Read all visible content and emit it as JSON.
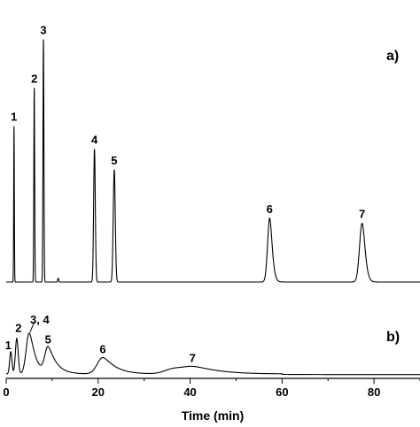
{
  "chart_data": [
    {
      "panel_label": "a)",
      "type": "line",
      "xlabel": "Time (min)",
      "xlim": [
        0,
        90
      ],
      "ylim": [
        0,
        1
      ],
      "peaks": [
        {
          "label": "1",
          "time": 1.7,
          "height": 0.61,
          "width": 0.07,
          "tail": 0.0
        },
        {
          "label": "2",
          "time": 6.1,
          "height": 0.76,
          "width": 0.09,
          "tail": 0.0
        },
        {
          "label": "3",
          "time": 8.1,
          "height": 0.95,
          "width": 0.1,
          "tail": 0.0
        },
        {
          "label": "4",
          "time": 19.2,
          "height": 0.52,
          "width": 0.18,
          "tail": 0.0
        },
        {
          "label": "5",
          "time": 23.5,
          "height": 0.44,
          "width": 0.22,
          "tail": 0.0
        },
        {
          "label": "6",
          "time": 57.3,
          "height": 0.25,
          "width": 0.45,
          "tail": 1.6
        },
        {
          "label": "7",
          "time": 77.4,
          "height": 0.23,
          "width": 0.55,
          "tail": 2.4
        }
      ],
      "minor_peaks": [
        {
          "time": 11.3,
          "height": 0.015,
          "width": 0.1
        }
      ]
    },
    {
      "panel_label": "b)",
      "type": "line",
      "xlabel": "Time (min)",
      "xlim": [
        0,
        90
      ],
      "ylim": [
        0,
        1
      ],
      "peaks": [
        {
          "label": "1",
          "time": 1.0,
          "height": 0.3,
          "width": 0.25,
          "tail": 0.0
        },
        {
          "label": "2",
          "time": 2.3,
          "height": 0.48,
          "width": 0.3,
          "tail": 0.0
        },
        {
          "label": "3, 4",
          "time": 5.0,
          "height": 0.55,
          "width": 0.65,
          "tail": 0.8
        },
        {
          "label": "5",
          "time": 9.1,
          "height": 0.35,
          "width": 0.7,
          "tail": 0.6
        },
        {
          "label": "6",
          "time": 21.0,
          "height": 0.22,
          "width": 1.2,
          "tail": 1.2
        },
        {
          "label": "7",
          "time": 40.5,
          "height": 0.1,
          "width": 2.6,
          "tail": 3.0
        }
      ],
      "minor_peaks": [
        {
          "time": 36.0,
          "height": 0.05,
          "width": 1.8
        }
      ]
    }
  ],
  "x_axis": {
    "ticks": [
      0,
      20,
      40,
      60,
      80
    ],
    "tick_labels": [
      "0",
      "20",
      "40",
      "60",
      "80"
    ],
    "label": "Time (min)"
  }
}
